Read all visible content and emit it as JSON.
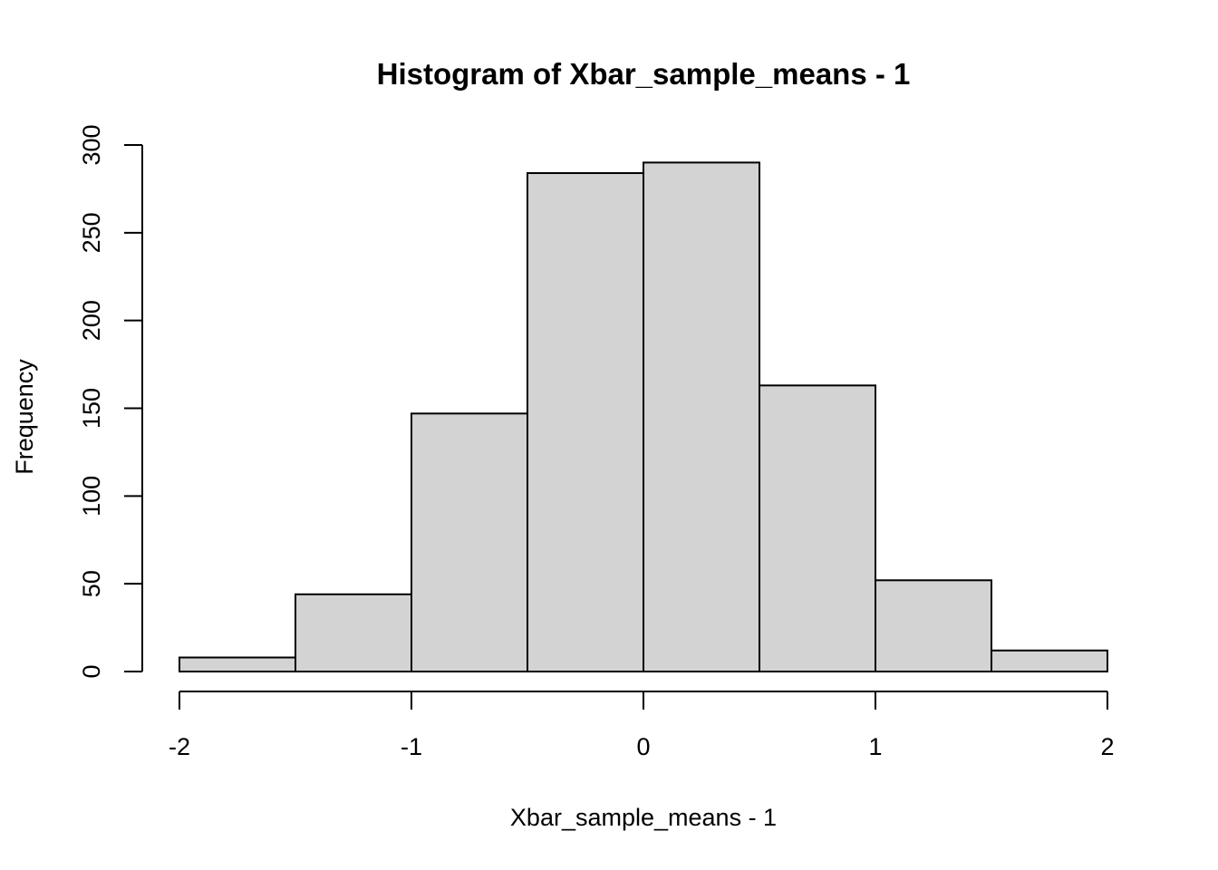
{
  "chart_data": {
    "type": "bar",
    "title": "Histogram of Xbar_sample_means - 1",
    "xlabel": "Xbar_sample_means - 1",
    "ylabel": "Frequency",
    "bins": [
      {
        "from": -2.0,
        "to": -1.5,
        "count": 8
      },
      {
        "from": -1.5,
        "to": -1.0,
        "count": 44
      },
      {
        "from": -1.0,
        "to": -0.5,
        "count": 147
      },
      {
        "from": -0.5,
        "to": 0.0,
        "count": 284
      },
      {
        "from": 0.0,
        "to": 0.5,
        "count": 290
      },
      {
        "from": 0.5,
        "to": 1.0,
        "count": 163
      },
      {
        "from": 1.0,
        "to": 1.5,
        "count": 52
      },
      {
        "from": 1.5,
        "to": 2.0,
        "count": 12
      }
    ],
    "xlim": [
      -2,
      2
    ],
    "ylim": [
      0,
      300
    ],
    "x_ticks": [
      -2,
      -1,
      0,
      1,
      2
    ],
    "x_tick_labels": [
      "-2",
      "-1",
      "0",
      "1",
      "2"
    ],
    "y_ticks": [
      0,
      50,
      100,
      150,
      200,
      250,
      300
    ],
    "y_tick_labels": [
      "0",
      "50",
      "100",
      "150",
      "200",
      "250",
      "300"
    ],
    "bar_color": "#d3d3d3",
    "border_color": "#000000",
    "grid": false
  }
}
